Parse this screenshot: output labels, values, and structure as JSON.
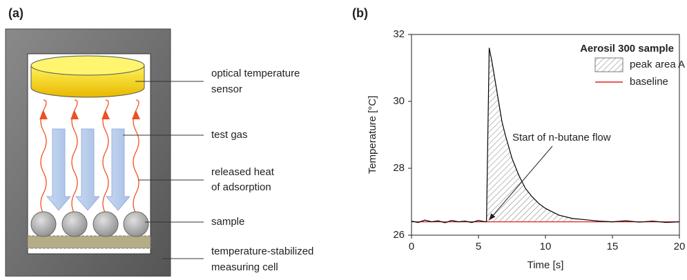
{
  "panel_a": {
    "label": "(a)",
    "callouts": [
      [
        "optical temperature",
        "sensor"
      ],
      [
        "test gas"
      ],
      [
        "released heat",
        "of adsorption"
      ],
      [
        "sample"
      ],
      [
        "temperature-stabilized",
        "measuring cell"
      ]
    ]
  },
  "panel_b": {
    "label": "(b)"
  },
  "chart_data": {
    "type": "line",
    "xlabel": "Time [s]",
    "ylabel": "Temperature [°C]",
    "legend_title": "Aerosil 300 sample",
    "peak_area": {
      "name": "peak area A",
      "x_start": 5.6,
      "x_end": 12
    },
    "annotation": {
      "text": "Start of n-butane flow",
      "x": 5.6,
      "y": 26.4
    },
    "x": [
      0,
      0.5,
      1,
      1.5,
      2,
      2.5,
      3,
      3.5,
      4,
      4.5,
      5,
      5.5,
      5.6,
      5.8,
      6,
      6.25,
      6.5,
      6.75,
      7,
      7.5,
      8,
      8.5,
      9,
      9.5,
      10,
      10.5,
      11,
      12,
      13,
      14,
      15,
      16,
      17,
      18,
      19,
      20
    ],
    "series": [
      {
        "color": "#000000",
        "values": [
          26.42,
          26.38,
          26.45,
          26.4,
          26.43,
          26.37,
          26.44,
          26.4,
          26.42,
          26.38,
          26.44,
          26.4,
          26.42,
          31.6,
          31.2,
          30.6,
          30.0,
          29.4,
          29.0,
          28.3,
          27.8,
          27.4,
          27.15,
          26.95,
          26.8,
          26.7,
          26.6,
          26.5,
          26.46,
          26.42,
          26.4,
          26.43,
          26.39,
          26.42,
          26.38,
          26.4
        ]
      },
      {
        "name": "baseline",
        "color": "#e02020",
        "x": [
          0,
          20
        ],
        "values": [
          26.4,
          26.4
        ]
      }
    ],
    "xlim": [
      0,
      20
    ],
    "xticks": [
      0,
      5,
      10,
      15,
      20
    ],
    "ylim": [
      26,
      32
    ],
    "yticks": [
      26,
      28,
      30,
      32
    ]
  }
}
